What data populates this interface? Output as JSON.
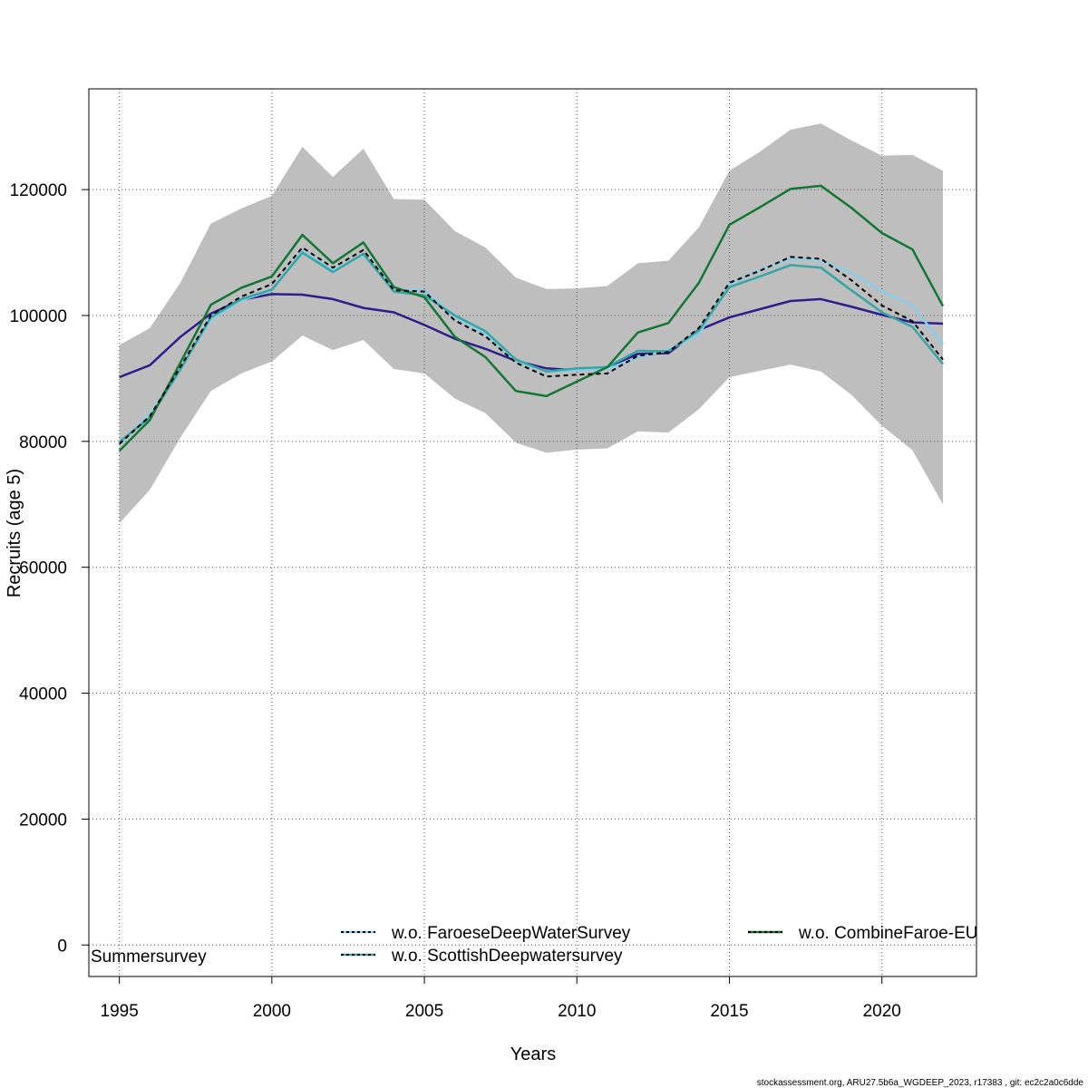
{
  "chart_data": {
    "type": "line",
    "xlabel": "Years",
    "ylabel": "Recruits (age 5)",
    "xlim": [
      1994,
      2023.1
    ],
    "ylim": [
      -5000,
      136000
    ],
    "x_ticks": [
      1995,
      2000,
      2005,
      2010,
      2015,
      2020
    ],
    "y_ticks": [
      0,
      20000,
      40000,
      60000,
      80000,
      100000,
      120000
    ],
    "grid": true,
    "x": [
      1995,
      1996,
      1997,
      1998,
      1999,
      2000,
      2001,
      2002,
      2003,
      2004,
      2005,
      2006,
      2007,
      2008,
      2009,
      2010,
      2011,
      2012,
      2013,
      2014,
      2015,
      2016,
      2017,
      2018,
      2019,
      2020,
      2021,
      2022
    ],
    "confidence_band": {
      "color": "#bebebe",
      "upper": [
        95300,
        98000,
        105200,
        114600,
        117000,
        119000,
        126800,
        122000,
        126500,
        118500,
        118400,
        113400,
        110800,
        106000,
        104200,
        104300,
        104700,
        108300,
        108700,
        114000,
        123000,
        126000,
        129500,
        130500,
        127800,
        125400,
        125500,
        123000
      ],
      "lower": [
        67000,
        72300,
        80600,
        88000,
        90800,
        92700,
        96800,
        94500,
        96100,
        91500,
        90800,
        86800,
        84500,
        79800,
        78200,
        78700,
        78900,
        81600,
        81400,
        85100,
        90200,
        91200,
        92200,
        91100,
        87400,
        82500,
        78600,
        70000
      ]
    },
    "series": [
      {
        "color": "#2d1e8c",
        "dashed": false,
        "values": [
          90200,
          92100,
          96600,
          100300,
          102500,
          103400,
          103300,
          102600,
          101200,
          100500,
          98500,
          96300,
          94700,
          92800,
          91600,
          91300,
          91800,
          93900,
          94000,
          97700,
          99700,
          101000,
          102300,
          102600,
          101400,
          100100,
          98900,
          98700
        ]
      },
      {
        "name": "w.o. FaroeseDeepWaterSurvey",
        "color": "#87ceeb",
        "dashed": false,
        "values": [
          79500,
          84300,
          91600,
          99300,
          102400,
          104000,
          110200,
          107200,
          109600,
          104200,
          104000,
          99800,
          97100,
          92800,
          91100,
          91300,
          91500,
          93300,
          94500,
          97000,
          105000,
          107200,
          109000,
          108700,
          106800,
          103800,
          101600,
          95400
        ]
      },
      {
        "name": "w.o. ScottishDeepwatersurvey",
        "color": "#34a6a6",
        "dashed": false,
        "values": [
          79900,
          83800,
          91400,
          99700,
          102600,
          104100,
          110000,
          106900,
          109800,
          103800,
          103200,
          100000,
          97500,
          93000,
          91100,
          91600,
          91800,
          94400,
          94300,
          97600,
          104500,
          106200,
          108000,
          107600,
          104000,
          100500,
          98200,
          92300
        ]
      },
      {
        "name": "w.o. CombineFaroe-EU",
        "color": "#127734",
        "dashed": false,
        "values": [
          78500,
          83400,
          92500,
          101700,
          104400,
          106200,
          112800,
          108300,
          111600,
          104500,
          102900,
          96600,
          93400,
          88000,
          87200,
          89500,
          91800,
          97300,
          98800,
          105200,
          114400,
          117200,
          120100,
          120600,
          117100,
          113100,
          110500,
          101500
        ]
      },
      {
        "color": "#000000",
        "dashed": true,
        "values": [
          79600,
          84000,
          91800,
          100000,
          103000,
          105000,
          110800,
          107600,
          110400,
          104000,
          103800,
          99200,
          96700,
          92500,
          90300,
          90600,
          90800,
          93600,
          94200,
          98000,
          105200,
          107100,
          109300,
          109000,
          105600,
          101600,
          99100,
          93000
        ]
      }
    ]
  },
  "legend": {
    "items": [
      {
        "label": "w.o. FaroeseDeepWaterSurvey",
        "color": "#87ceeb"
      },
      {
        "label": "w.o. ScottishDeepwatersurvey",
        "color": "#34a6a6"
      },
      {
        "label": "w.o. CombineFaroe-EU",
        "color": "#127734"
      }
    ],
    "overflow_text": "Summersurvey"
  },
  "footer": "stockassessment.org, ARU27.5b6a_WGDEEP_2023, r17383 , git: ec2c2a0c6dde"
}
